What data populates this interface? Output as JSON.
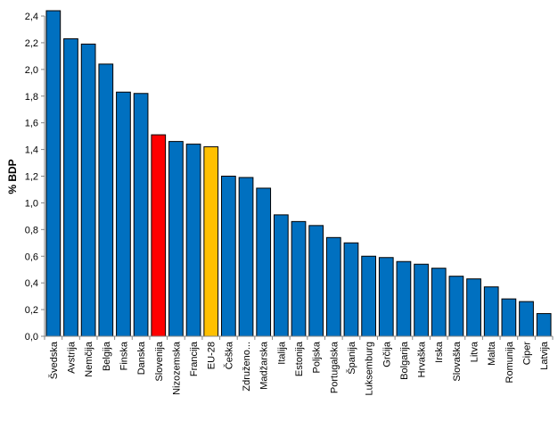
{
  "chart_data": {
    "type": "bar",
    "title": "",
    "xlabel": "",
    "ylabel": "% BDP",
    "ylim": [
      0,
      2.4
    ],
    "ytick_step": 0.2,
    "grid": false,
    "legend": "none",
    "categories": [
      "Švedska",
      "Avstrija",
      "Nemčija",
      "Belgija",
      "Finska",
      "Danska",
      "Slovenija",
      "Nizozemska",
      "Francija",
      "EU-28",
      "Češka",
      "Združeno...",
      "Madžarska",
      "Italija",
      "Estonija",
      "Poljska",
      "Portugalska",
      "Španija",
      "Luksemburg",
      "Grčija",
      "Bolgarija",
      "Hrvaška",
      "Irska",
      "Slovaška",
      "Litva",
      "Malta",
      "Romunija",
      "Ciper",
      "Latvija"
    ],
    "values": [
      2.44,
      2.23,
      2.19,
      2.04,
      1.83,
      1.82,
      1.51,
      1.46,
      1.44,
      1.42,
      1.2,
      1.19,
      1.11,
      0.91,
      0.86,
      0.83,
      0.74,
      0.7,
      0.6,
      0.59,
      0.56,
      0.54,
      0.51,
      0.45,
      0.43,
      0.37,
      0.28,
      0.26,
      0.17
    ],
    "ytick_labels": [
      "0,0",
      "0,2",
      "0,4",
      "0,6",
      "0,8",
      "1,0",
      "1,2",
      "1,4",
      "1,6",
      "1,8",
      "2,0",
      "2,2",
      "2,4"
    ],
    "colors": {
      "default": "#0070C0",
      "highlight": {
        "Slovenija": "#FF0000",
        "EU-28": "#FFC000"
      },
      "edge": "#000000"
    }
  }
}
